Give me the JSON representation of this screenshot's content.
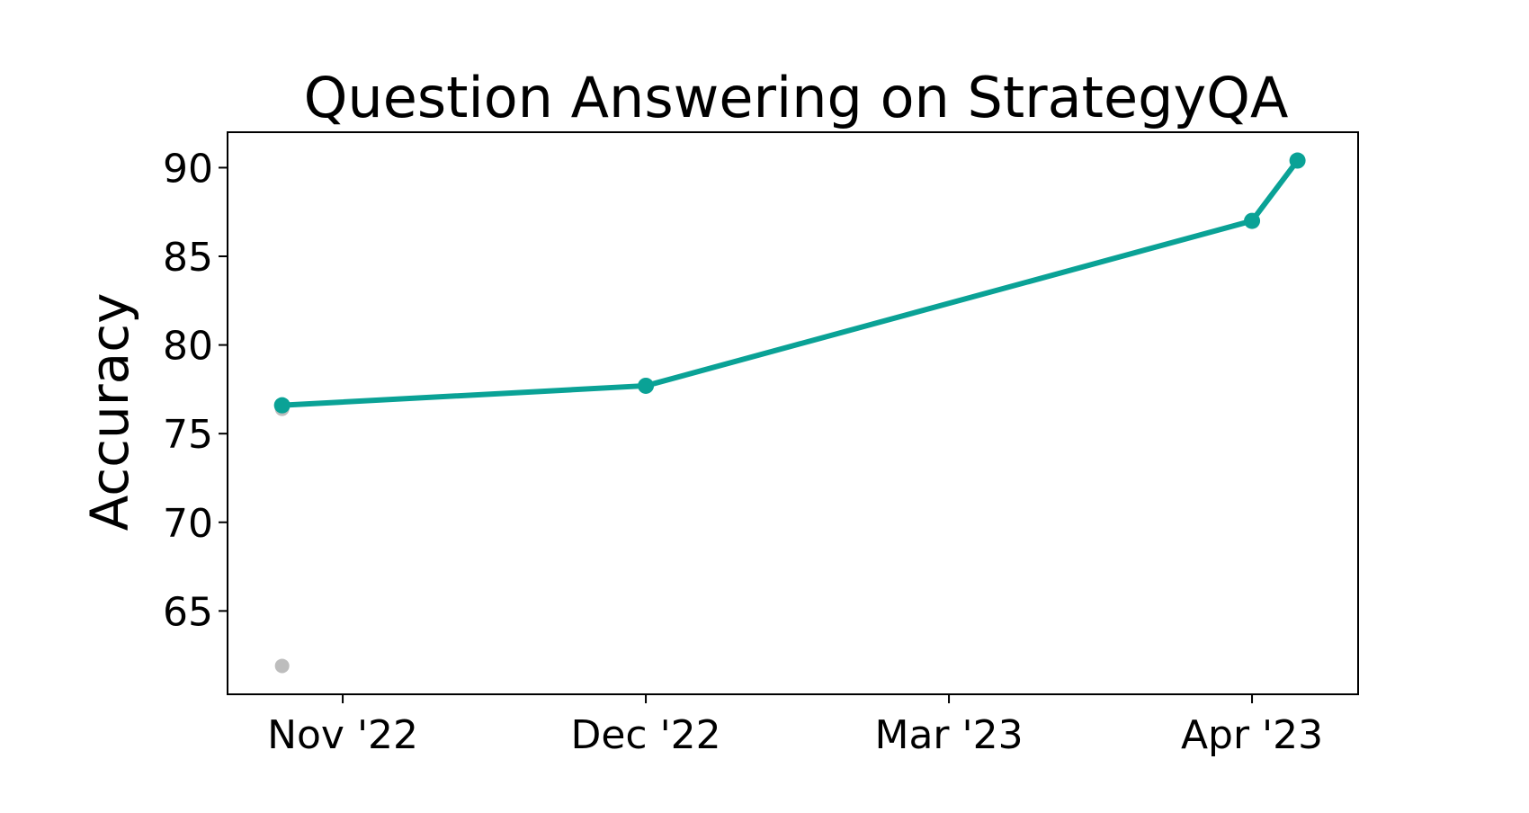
{
  "chart_data": {
    "type": "line",
    "title": "Question Answering on StrategyQA",
    "xlabel": "",
    "ylabel": "Accuracy",
    "x_ticks": [
      "Nov '22",
      "Dec '22",
      "Mar '23",
      "Apr '23"
    ],
    "y_ticks": [
      "65",
      "70",
      "75",
      "80",
      "85",
      "90"
    ],
    "ylim": [
      60.3,
      92.0
    ],
    "xlim": [
      -0.38,
      3.35
    ],
    "grid": false,
    "series": [
      {
        "color": "#0aa296",
        "points": [
          {
            "x": -0.2,
            "y": 76.6
          },
          {
            "x": 1.0,
            "y": 77.7
          },
          {
            "x": 3.0,
            "y": 87.0
          },
          {
            "x": 3.15,
            "y": 90.4
          }
        ]
      }
    ],
    "background_points": {
      "color": "#bdbdbd",
      "points": [
        {
          "x": -0.2,
          "y": 76.4
        },
        {
          "x": -0.2,
          "y": 61.9
        }
      ]
    }
  }
}
